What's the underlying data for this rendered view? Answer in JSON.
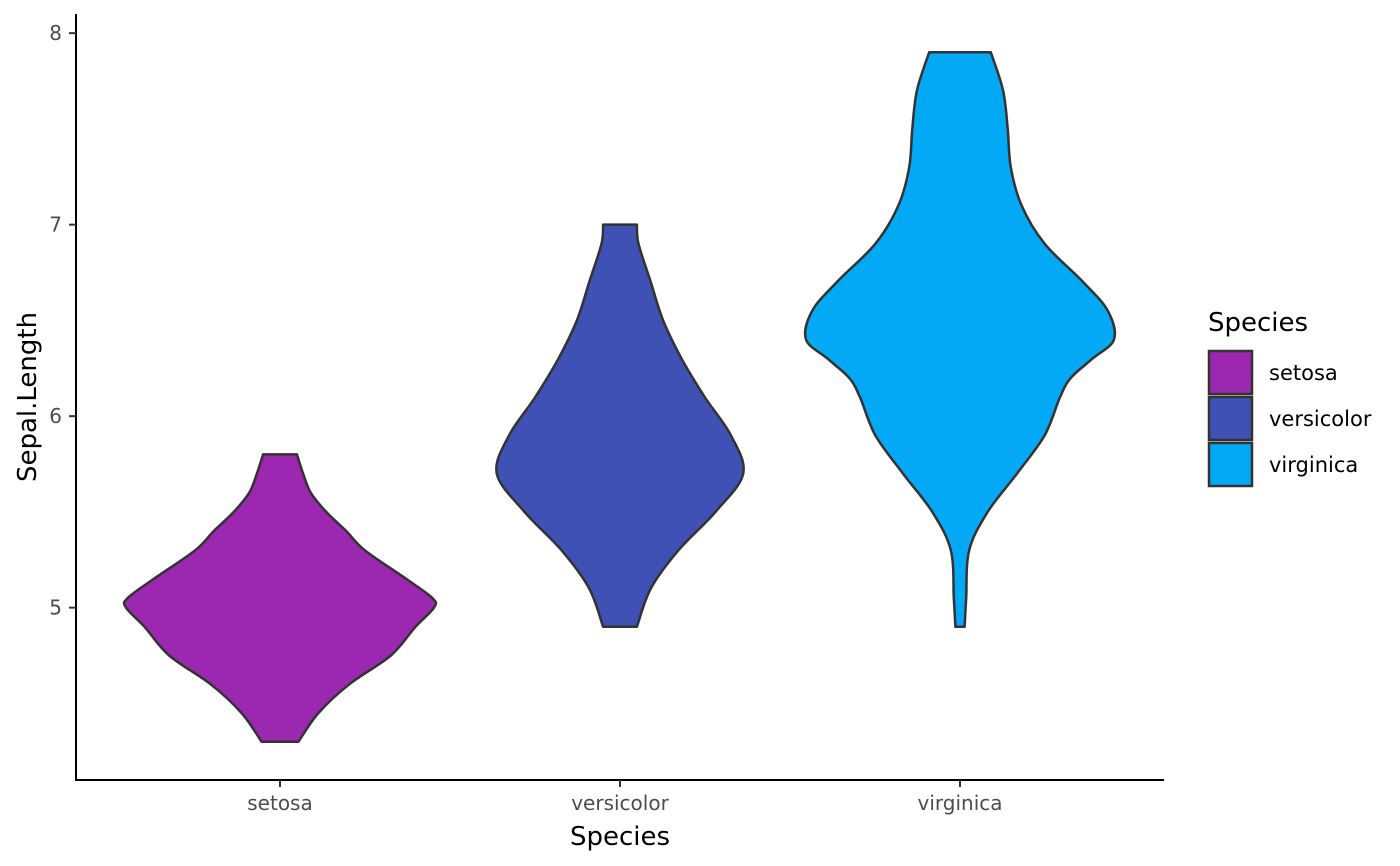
{
  "chart_data": {
    "type": "violin",
    "xlabel": "Species",
    "ylabel": "Sepal.Length",
    "categories": [
      "setosa",
      "versicolor",
      "virginica"
    ],
    "yticks": [
      5,
      6,
      7,
      8
    ],
    "ylim": [
      4.1,
      8.1
    ],
    "grid": false,
    "legend": {
      "title": "Species",
      "position": "right",
      "entries": [
        "setosa",
        "versicolor",
        "virginica"
      ]
    },
    "series": [
      {
        "name": "setosa",
        "color": "#9C27B0",
        "min": 4.3,
        "max": 5.8,
        "profile": [
          [
            4.3,
            0.12
          ],
          [
            4.45,
            0.25
          ],
          [
            4.6,
            0.45
          ],
          [
            4.75,
            0.72
          ],
          [
            4.9,
            0.88
          ],
          [
            5.0,
            1.0
          ],
          [
            5.05,
            0.99
          ],
          [
            5.15,
            0.82
          ],
          [
            5.3,
            0.55
          ],
          [
            5.4,
            0.43
          ],
          [
            5.5,
            0.3
          ],
          [
            5.6,
            0.2
          ],
          [
            5.7,
            0.15
          ],
          [
            5.8,
            0.11
          ]
        ]
      },
      {
        "name": "versicolor",
        "color": "#3F51B5",
        "min": 4.9,
        "max": 7.0,
        "profile": [
          [
            4.9,
            0.11
          ],
          [
            5.1,
            0.2
          ],
          [
            5.3,
            0.38
          ],
          [
            5.5,
            0.62
          ],
          [
            5.7,
            0.8
          ],
          [
            5.9,
            0.72
          ],
          [
            6.1,
            0.55
          ],
          [
            6.3,
            0.4
          ],
          [
            6.5,
            0.28
          ],
          [
            6.7,
            0.2
          ],
          [
            6.9,
            0.12
          ],
          [
            7.0,
            0.11
          ]
        ]
      },
      {
        "name": "virginica",
        "color": "#03A9F4",
        "min": 4.9,
        "max": 7.9,
        "profile": [
          [
            4.9,
            0.03
          ],
          [
            5.05,
            0.04
          ],
          [
            5.3,
            0.06
          ],
          [
            5.5,
            0.18
          ],
          [
            5.7,
            0.37
          ],
          [
            5.9,
            0.55
          ],
          [
            6.1,
            0.65
          ],
          [
            6.2,
            0.72
          ],
          [
            6.3,
            0.86
          ],
          [
            6.4,
            1.0
          ],
          [
            6.55,
            0.96
          ],
          [
            6.7,
            0.8
          ],
          [
            6.9,
            0.55
          ],
          [
            7.1,
            0.4
          ],
          [
            7.3,
            0.33
          ],
          [
            7.5,
            0.31
          ],
          [
            7.7,
            0.28
          ],
          [
            7.9,
            0.2
          ]
        ]
      }
    ]
  }
}
